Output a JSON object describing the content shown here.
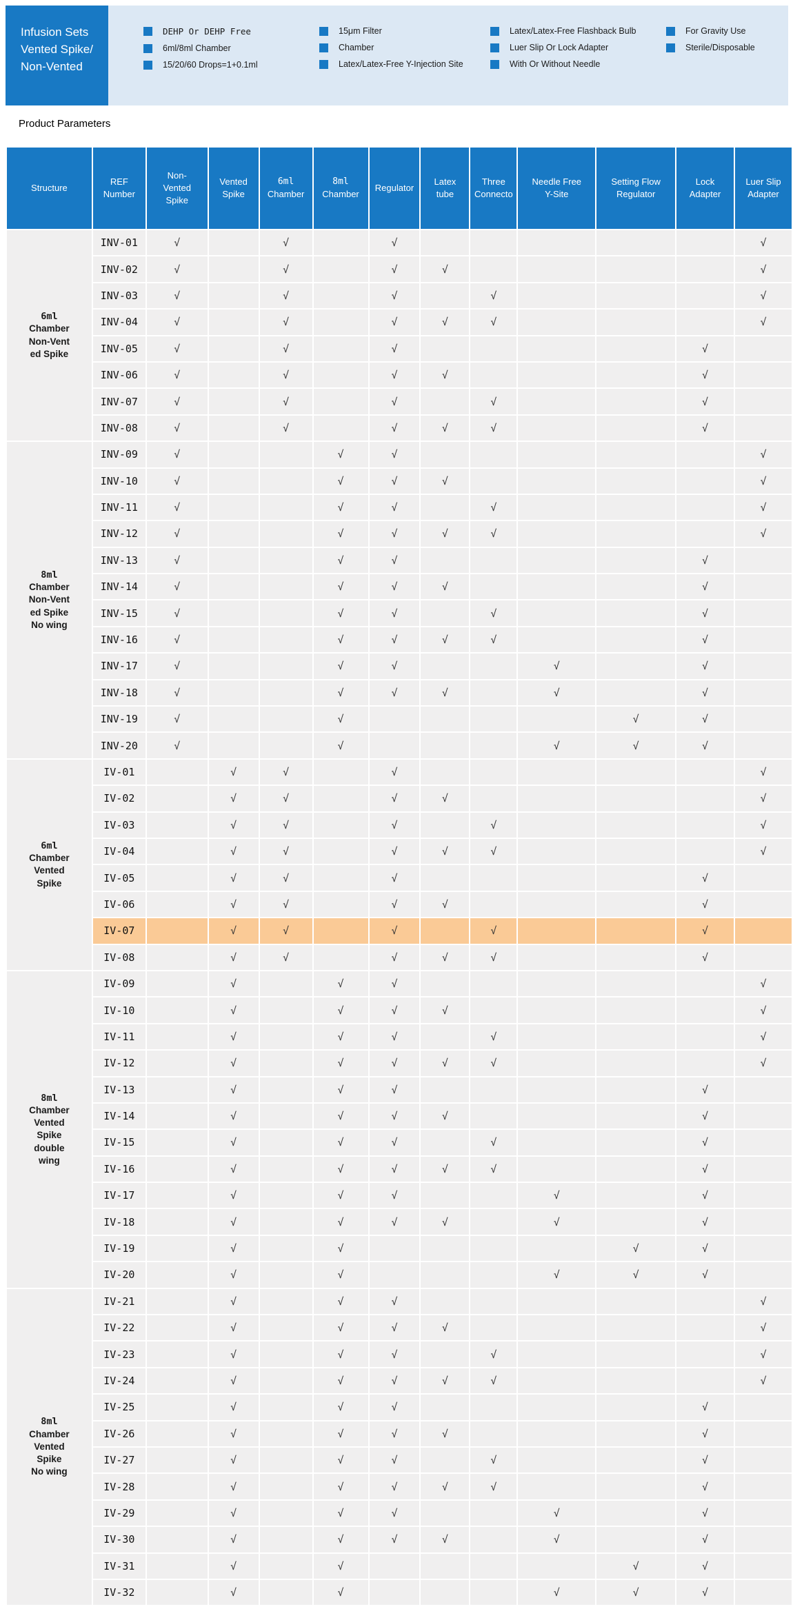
{
  "colors": {
    "accent_blue": "#1879C4",
    "panel_blue": "#DCE8F4",
    "row_gray": "#F0EFEF",
    "highlight_orange": "#FACA96",
    "check_color": "#333333"
  },
  "banner": {
    "title": "Infusion Sets\n Vented Spike/\nNon-Vented",
    "feature_columns": [
      {
        "items": [
          {
            "text": "DEHP Or DEHP Free",
            "mono": true
          },
          {
            "text": "6ml/8ml Chamber",
            "mono": false
          },
          {
            "text": "15/20/60 Drops=1+0.1ml",
            "mono": false
          }
        ]
      },
      {
        "items": [
          {
            "text": "15μm Filter",
            "mono": false
          },
          {
            "text": "Chamber",
            "mono": false
          },
          {
            "text": "Latex/Latex-Free Y-Injection Site",
            "mono": false
          }
        ]
      },
      {
        "items": [
          {
            "text": "Latex/Latex-Free Flashback Bulb",
            "mono": false
          },
          {
            "text": "Luer Slip Or Lock Adapter",
            "mono": false
          },
          {
            "text": "With Or Without Needle",
            "mono": false
          }
        ]
      },
      {
        "items": [
          {
            "text": "For Gravity Use",
            "mono": false
          },
          {
            "text": "Sterile/Disposable",
            "mono": false
          }
        ]
      }
    ]
  },
  "page": {
    "product_parameters_label": "Product Parameters"
  },
  "table": {
    "check_mark": "√",
    "column_labels": [
      "Structure",
      "REF\nNumber",
      "Non-\nVented\nSpike",
      "Vented\nSpike",
      "6ml\nChamber",
      "8ml\nChamber",
      "Regulator",
      "Latex\ntube",
      "Three\nConnecto",
      "Needle Free\nY-Site",
      "Setting Flow\nRegulator",
      "Lock\nAdapter",
      "Luer Slip\nAdapter"
    ],
    "check_columns": [
      "non_vented",
      "vented",
      "chamber6",
      "chamber8",
      "regulator",
      "latex_tube",
      "three_connector",
      "needle_free",
      "setting_flow",
      "lock_adapter",
      "luer_slip"
    ],
    "groups": [
      {
        "structure": "6ml\nChamber\nNon-Vent\ned Spike",
        "rows": [
          {
            "ref": "INV-01",
            "checks": [
              "non_vented",
              "chamber6",
              "regulator",
              "luer_slip"
            ]
          },
          {
            "ref": "INV-02",
            "checks": [
              "non_vented",
              "chamber6",
              "regulator",
              "latex_tube",
              "luer_slip"
            ]
          },
          {
            "ref": "INV-03",
            "checks": [
              "non_vented",
              "chamber6",
              "regulator",
              "three_connector",
              "luer_slip"
            ]
          },
          {
            "ref": "INV-04",
            "checks": [
              "non_vented",
              "chamber6",
              "regulator",
              "latex_tube",
              "three_connector",
              "luer_slip"
            ]
          },
          {
            "ref": "INV-05",
            "checks": [
              "non_vented",
              "chamber6",
              "regulator",
              "lock_adapter"
            ]
          },
          {
            "ref": "INV-06",
            "checks": [
              "non_vented",
              "chamber6",
              "regulator",
              "latex_tube",
              "lock_adapter"
            ]
          },
          {
            "ref": "INV-07",
            "checks": [
              "non_vented",
              "chamber6",
              "regulator",
              "three_connector",
              "lock_adapter"
            ]
          },
          {
            "ref": "INV-08",
            "checks": [
              "non_vented",
              "chamber6",
              "regulator",
              "latex_tube",
              "three_connector",
              "lock_adapter"
            ]
          }
        ]
      },
      {
        "structure": "8ml\nChamber\nNon-Vent\ned Spike\nNo wing",
        "rows": [
          {
            "ref": "INV-09",
            "checks": [
              "non_vented",
              "chamber8",
              "regulator",
              "luer_slip"
            ]
          },
          {
            "ref": "INV-10",
            "checks": [
              "non_vented",
              "chamber8",
              "regulator",
              "latex_tube",
              "luer_slip"
            ]
          },
          {
            "ref": "INV-11",
            "checks": [
              "non_vented",
              "chamber8",
              "regulator",
              "three_connector",
              "luer_slip"
            ]
          },
          {
            "ref": "INV-12",
            "checks": [
              "non_vented",
              "chamber8",
              "regulator",
              "latex_tube",
              "three_connector",
              "luer_slip"
            ]
          },
          {
            "ref": "INV-13",
            "checks": [
              "non_vented",
              "chamber8",
              "regulator",
              "lock_adapter"
            ]
          },
          {
            "ref": "INV-14",
            "checks": [
              "non_vented",
              "chamber8",
              "regulator",
              "latex_tube",
              "lock_adapter"
            ]
          },
          {
            "ref": "INV-15",
            "checks": [
              "non_vented",
              "chamber8",
              "regulator",
              "three_connector",
              "lock_adapter"
            ]
          },
          {
            "ref": "INV-16",
            "checks": [
              "non_vented",
              "chamber8",
              "regulator",
              "latex_tube",
              "three_connector",
              "lock_adapter"
            ]
          },
          {
            "ref": "INV-17",
            "checks": [
              "non_vented",
              "chamber8",
              "regulator",
              "needle_free",
              "lock_adapter"
            ]
          },
          {
            "ref": "INV-18",
            "checks": [
              "non_vented",
              "chamber8",
              "regulator",
              "latex_tube",
              "needle_free",
              "lock_adapter"
            ]
          },
          {
            "ref": "INV-19",
            "checks": [
              "non_vented",
              "chamber8",
              "setting_flow",
              "lock_adapter"
            ]
          },
          {
            "ref": "INV-20",
            "checks": [
              "non_vented",
              "chamber8",
              "needle_free",
              "setting_flow",
              "lock_adapter"
            ]
          }
        ]
      },
      {
        "structure": "6ml\nChamber\nVented\nSpike",
        "rows": [
          {
            "ref": "IV-01",
            "checks": [
              "vented",
              "chamber6",
              "regulator",
              "luer_slip"
            ]
          },
          {
            "ref": "IV-02",
            "checks": [
              "vented",
              "chamber6",
              "regulator",
              "latex_tube",
              "luer_slip"
            ]
          },
          {
            "ref": "IV-03",
            "checks": [
              "vented",
              "chamber6",
              "regulator",
              "three_connector",
              "luer_slip"
            ]
          },
          {
            "ref": "IV-04",
            "checks": [
              "vented",
              "chamber6",
              "regulator",
              "latex_tube",
              "three_connector",
              "luer_slip"
            ]
          },
          {
            "ref": "IV-05",
            "checks": [
              "vented",
              "chamber6",
              "regulator",
              "lock_adapter"
            ]
          },
          {
            "ref": "IV-06",
            "checks": [
              "vented",
              "chamber6",
              "regulator",
              "latex_tube",
              "lock_adapter"
            ]
          },
          {
            "ref": "IV-07",
            "checks": [
              "vented",
              "chamber6",
              "regulator",
              "three_connector",
              "lock_adapter"
            ],
            "highlight": true
          },
          {
            "ref": "IV-08",
            "checks": [
              "vented",
              "chamber6",
              "regulator",
              "latex_tube",
              "three_connector",
              "lock_adapter"
            ]
          }
        ]
      },
      {
        "structure": "8ml\nChamber\nVented\nSpike\ndouble\nwing",
        "rows": [
          {
            "ref": "IV-09",
            "checks": [
              "vented",
              "chamber8",
              "regulator",
              "luer_slip"
            ]
          },
          {
            "ref": "IV-10",
            "checks": [
              "vented",
              "chamber8",
              "regulator",
              "latex_tube",
              "luer_slip"
            ]
          },
          {
            "ref": "IV-11",
            "checks": [
              "vented",
              "chamber8",
              "regulator",
              "three_connector",
              "luer_slip"
            ]
          },
          {
            "ref": "IV-12",
            "checks": [
              "vented",
              "chamber8",
              "regulator",
              "latex_tube",
              "three_connector",
              "luer_slip"
            ]
          },
          {
            "ref": "IV-13",
            "checks": [
              "vented",
              "chamber8",
              "regulator",
              "lock_adapter"
            ]
          },
          {
            "ref": "IV-14",
            "checks": [
              "vented",
              "chamber8",
              "regulator",
              "latex_tube",
              "lock_adapter"
            ]
          },
          {
            "ref": "IV-15",
            "checks": [
              "vented",
              "chamber8",
              "regulator",
              "three_connector",
              "lock_adapter"
            ]
          },
          {
            "ref": "IV-16",
            "checks": [
              "vented",
              "chamber8",
              "regulator",
              "latex_tube",
              "three_connector",
              "lock_adapter"
            ]
          },
          {
            "ref": "IV-17",
            "checks": [
              "vented",
              "chamber8",
              "regulator",
              "needle_free",
              "lock_adapter"
            ]
          },
          {
            "ref": "IV-18",
            "checks": [
              "vented",
              "chamber8",
              "regulator",
              "latex_tube",
              "needle_free",
              "lock_adapter"
            ]
          },
          {
            "ref": "IV-19",
            "checks": [
              "vented",
              "chamber8",
              "setting_flow",
              "lock_adapter"
            ]
          },
          {
            "ref": "IV-20",
            "checks": [
              "vented",
              "chamber8",
              "needle_free",
              "setting_flow",
              "lock_adapter"
            ]
          }
        ]
      },
      {
        "structure": "8ml\nChamber\nVented\nSpike\nNo wing",
        "rows": [
          {
            "ref": "IV-21",
            "checks": [
              "vented",
              "chamber8",
              "regulator",
              "luer_slip"
            ]
          },
          {
            "ref": "IV-22",
            "checks": [
              "vented",
              "chamber8",
              "regulator",
              "latex_tube",
              "luer_slip"
            ]
          },
          {
            "ref": "IV-23",
            "checks": [
              "vented",
              "chamber8",
              "regulator",
              "three_connector",
              "luer_slip"
            ]
          },
          {
            "ref": "IV-24",
            "checks": [
              "vented",
              "chamber8",
              "regulator",
              "latex_tube",
              "three_connector",
              "luer_slip"
            ]
          },
          {
            "ref": "IV-25",
            "checks": [
              "vented",
              "chamber8",
              "regulator",
              "lock_adapter"
            ]
          },
          {
            "ref": "IV-26",
            "checks": [
              "vented",
              "chamber8",
              "regulator",
              "latex_tube",
              "lock_adapter"
            ]
          },
          {
            "ref": "IV-27",
            "checks": [
              "vented",
              "chamber8",
              "regulator",
              "three_connector",
              "lock_adapter"
            ]
          },
          {
            "ref": "IV-28",
            "checks": [
              "vented",
              "chamber8",
              "regulator",
              "latex_tube",
              "three_connector",
              "lock_adapter"
            ]
          },
          {
            "ref": "IV-29",
            "checks": [
              "vented",
              "chamber8",
              "regulator",
              "needle_free",
              "lock_adapter"
            ]
          },
          {
            "ref": "IV-30",
            "checks": [
              "vented",
              "chamber8",
              "regulator",
              "latex_tube",
              "needle_free",
              "lock_adapter"
            ]
          },
          {
            "ref": "IV-31",
            "checks": [
              "vented",
              "chamber8",
              "setting_flow",
              "lock_adapter"
            ]
          },
          {
            "ref": "IV-32",
            "checks": [
              "vented",
              "chamber8",
              "needle_free",
              "setting_flow",
              "lock_adapter"
            ]
          }
        ]
      }
    ]
  }
}
